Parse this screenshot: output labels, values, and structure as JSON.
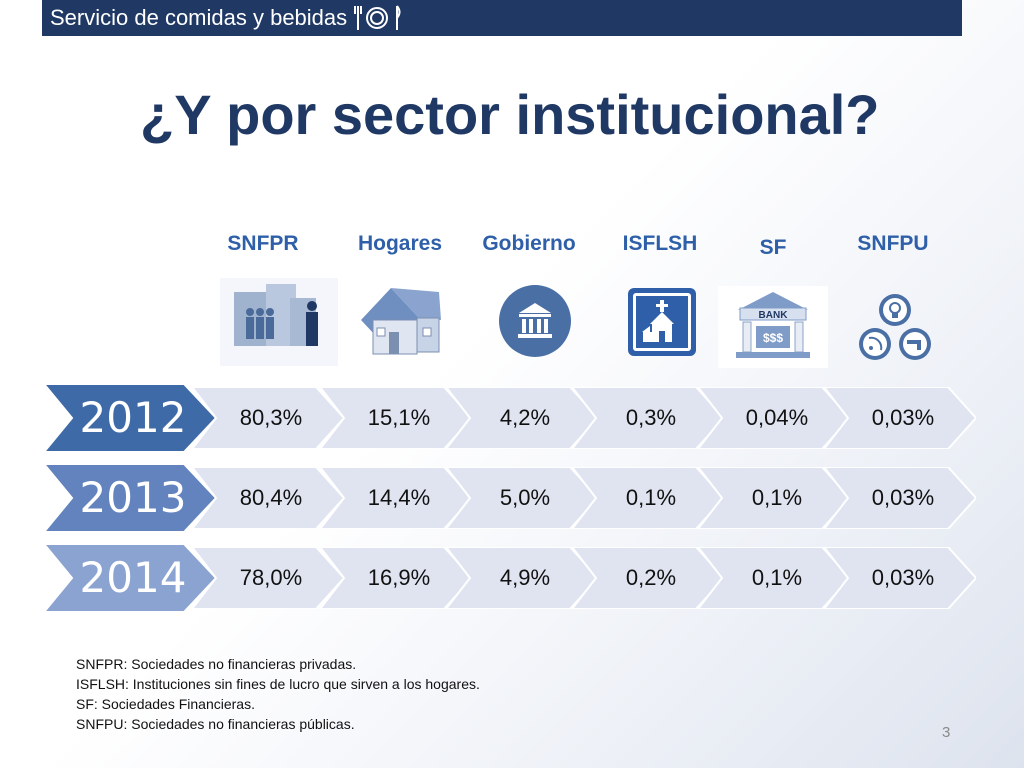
{
  "header": {
    "title": "Servicio de comidas y bebidas",
    "icon": "cutlery-icon"
  },
  "title": "¿Y por sector institucional?",
  "columns": [
    {
      "label": "SNFPR",
      "icon": "business-people-icon"
    },
    {
      "label": "Hogares",
      "icon": "house-icon"
    },
    {
      "label": "Gobierno",
      "icon": "government-building-icon"
    },
    {
      "label": "ISFLSH",
      "icon": "church-icon"
    },
    {
      "label": "SF",
      "icon": "bank-icon"
    },
    {
      "label": "SNFPU",
      "icon": "utilities-icon"
    }
  ],
  "rows": [
    {
      "year": "2012",
      "values": [
        "80,3%",
        "15,1%",
        "4,2%",
        "0,3%",
        "0,04%",
        "0,03%"
      ]
    },
    {
      "year": "2013",
      "values": [
        "80,4%",
        "14,4%",
        "5,0%",
        "0,1%",
        "0,1%",
        "0,03%"
      ]
    },
    {
      "year": "2014",
      "values": [
        "78,0%",
        "16,9%",
        "4,9%",
        "0,2%",
        "0,1%",
        "0,03%"
      ]
    }
  ],
  "notes": [
    "SNFPR: Sociedades no financieras privadas.",
    "ISFLSH: Instituciones sin fines de lucro que sirven a los hogares.",
    "SF: Sociedades Financieras.",
    "SNFPU: Sociedades no financieras públicas."
  ],
  "page_number": "3",
  "colors": {
    "header": "#1f3864",
    "title": "#1f3864",
    "column_label": "#2e5fa8",
    "year_2012": "#3f6aa8",
    "year_2013": "#6283bd",
    "year_2014": "#8ba3d0",
    "cell_fill": "#dfe4f0"
  },
  "chart_data": {
    "type": "table",
    "title": "¿Y por sector institucional?",
    "columns": [
      "SNFPR",
      "Hogares",
      "Gobierno",
      "ISFLSH",
      "SF",
      "SNFPU"
    ],
    "rows": [
      "2012",
      "2013",
      "2014"
    ],
    "values": [
      [
        80.3,
        15.1,
        4.2,
        0.3,
        0.04,
        0.03
      ],
      [
        80.4,
        14.4,
        5.0,
        0.1,
        0.1,
        0.03
      ],
      [
        78.0,
        16.9,
        4.9,
        0.2,
        0.1,
        0.03
      ]
    ],
    "unit": "%"
  }
}
